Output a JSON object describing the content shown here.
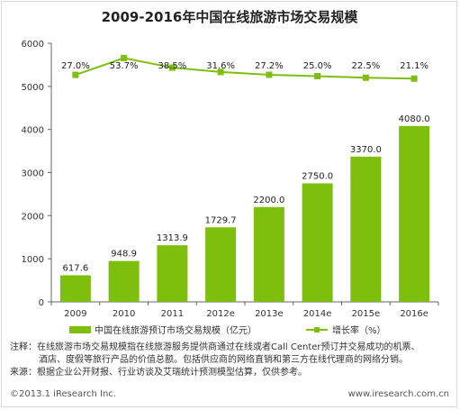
{
  "chart_data": {
    "type": "bar",
    "title": "2009-2016年中国在线旅游市场交易规模",
    "categories": [
      "2009",
      "2010",
      "2011",
      "2012e",
      "2013e",
      "2014e",
      "2015e",
      "2016e"
    ],
    "ylim": [
      0,
      6000
    ],
    "yticks": [
      0,
      1000,
      2000,
      3000,
      4000,
      5000,
      6000
    ],
    "grid": false,
    "series": [
      {
        "name": "中国在线旅游预订市场交易规模（亿元）",
        "type": "bar",
        "values": [
          617.6,
          948.9,
          1313.9,
          1729.7,
          2200.0,
          2750.0,
          3370.0,
          4080.0
        ],
        "labels": [
          "617.6",
          "948.9",
          "1313.9",
          "1729.7",
          "2200.0",
          "2750.0",
          "3370.0",
          "4080.0"
        ],
        "color": "#7ebf0e"
      },
      {
        "name": "增长率（%）",
        "type": "line",
        "values": [
          27.0,
          53.7,
          38.5,
          31.6,
          27.2,
          25.0,
          22.5,
          21.1
        ],
        "labels": [
          "27.0%",
          "53.7%",
          "38.5%",
          "31.6%",
          "27.2%",
          "25.0%",
          "22.5%",
          "21.1%"
        ],
        "color": "#7ebf0e"
      }
    ],
    "legend_position": "bottom"
  },
  "notes": {
    "line1": "注释：在线旅游市场交易规模指在线旅游服务提供商通过在线或者Call Center预订并交易成功的机票、",
    "line2": "酒店、度假等旅行产品的价值总额。包括供应商的网络直销和第三方在线代理商的网络分销。",
    "line3": "来源：根据企业公开财报、行业访谈及艾瑞统计预测模型估算，仅供参考。"
  },
  "footer": {
    "copyright": "©2013.1 iResearch Inc.",
    "website": "www.iresearch.com.cn"
  }
}
